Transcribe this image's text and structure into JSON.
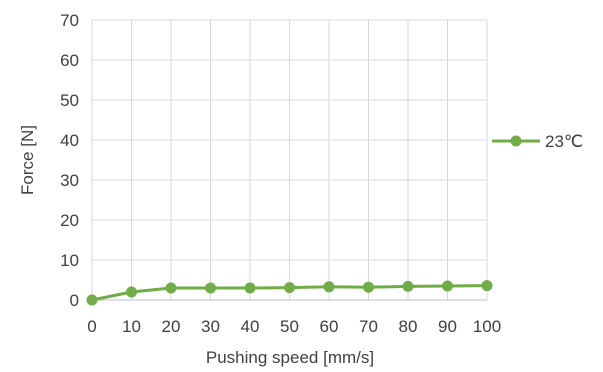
{
  "chart_data": {
    "type": "line",
    "title": "",
    "xlabel": "Pushing speed [mm/s]",
    "ylabel": "Force [N]",
    "xlim": [
      0,
      100
    ],
    "ylim": [
      0,
      70
    ],
    "x_ticks": [
      "0",
      "10",
      "20",
      "30",
      "40",
      "50",
      "60",
      "70",
      "80",
      "90",
      "100"
    ],
    "y_ticks": [
      "0",
      "10",
      "20",
      "30",
      "40",
      "50",
      "60",
      "70"
    ],
    "grid": true,
    "legend_position": "right",
    "series": [
      {
        "name": "23℃",
        "color": "#70ad47",
        "x": [
          0,
          10,
          20,
          30,
          40,
          50,
          60,
          70,
          80,
          90,
          100
        ],
        "y": [
          0,
          2,
          3,
          3,
          3,
          3.1,
          3.3,
          3.2,
          3.4,
          3.5,
          3.6
        ]
      }
    ]
  }
}
